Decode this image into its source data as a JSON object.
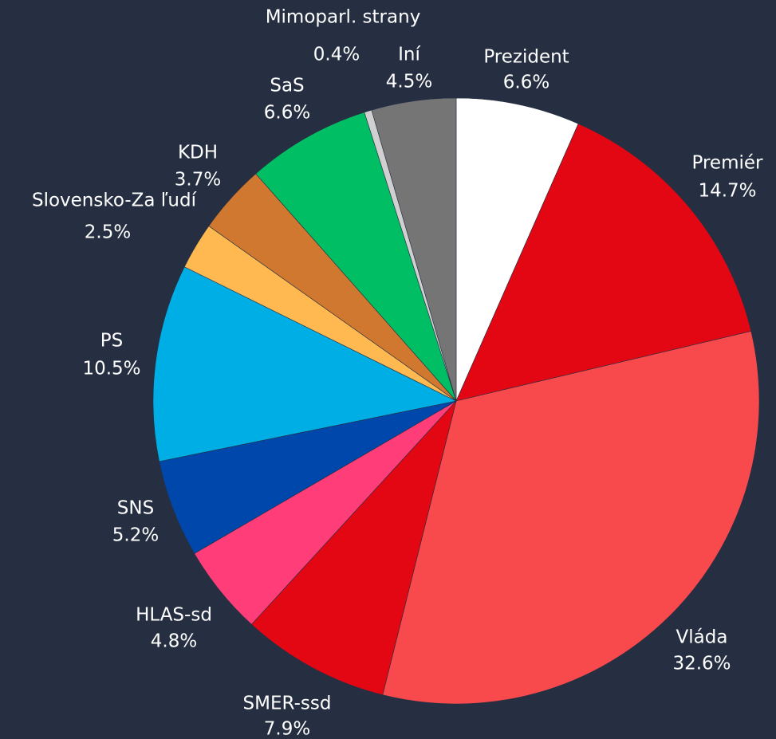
{
  "chart_data": {
    "type": "pie",
    "categories": [
      "Prezident",
      "Premiér",
      "Vláda",
      "SMER-ssd",
      "HLAS-sd",
      "SNS",
      "PS",
      "Slovensko-Za ľudí",
      "KDH",
      "SaS",
      "Mimoparl. strany",
      "Iní"
    ],
    "values": [
      6.6,
      14.7,
      32.6,
      7.9,
      4.8,
      5.2,
      10.5,
      2.5,
      3.7,
      6.6,
      0.4,
      4.5
    ],
    "value_labels": [
      "6.6%",
      "14.7%",
      "32.6%",
      "7.9%",
      "4.8%",
      "5.2%",
      "10.5%",
      "2.5%",
      "3.7%",
      "6.6%",
      "0.4%",
      "4.5%"
    ],
    "colors": [
      "#ffffff",
      "#e30613",
      "#f84a4c",
      "#e30613",
      "#ff3d78",
      "#0047ab",
      "#00aee6",
      "#ffb950",
      "#d07830",
      "#00be64",
      "#d0d0d0",
      "#757575"
    ]
  }
}
